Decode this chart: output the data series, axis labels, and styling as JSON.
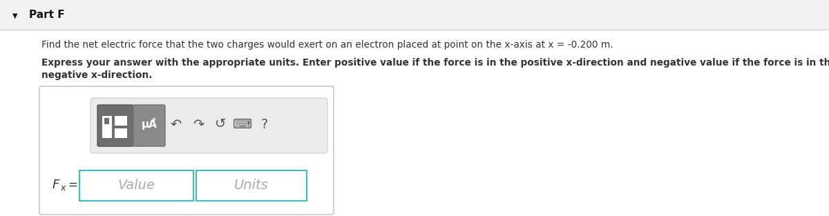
{
  "bg_color": "#f2f2f2",
  "white_bg": "#ffffff",
  "part_label": "Part F",
  "triangle_char": "▼",
  "main_text": "Find the net electric force that the two charges would exert on an electron placed at point on the x-axis at x = -0.200 m.",
  "bold_text_line1": "Express your answer with the appropriate units. Enter positive value if the force is in the positive x-direction and negative value if the force is in the",
  "bold_text_line2": "negative x-direction.",
  "value_placeholder": "Value",
  "units_placeholder": "Units",
  "input_border_color": "#3bbfbf",
  "toolbar_bg": "#ebebeb",
  "outer_box_border": "#c8c8c8",
  "placeholder_color": "#aaaaaa",
  "text_color": "#333333",
  "part_color": "#111111",
  "separator_color": "#d0d0d0",
  "btn1_color": "#777777",
  "btn2_color": "#888888",
  "icon_color": "#555555"
}
